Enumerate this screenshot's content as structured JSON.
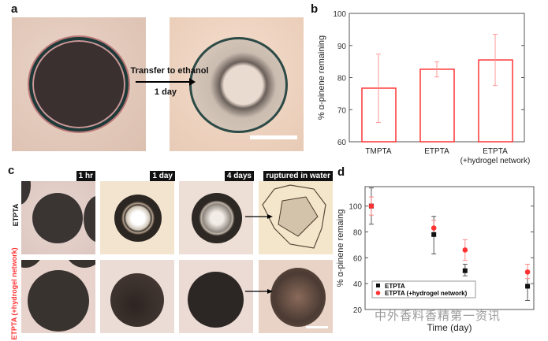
{
  "panels": {
    "a": {
      "label": "a",
      "arrow_text_top": "Transfer to ethanol",
      "arrow_text_bottom": "1 day"
    },
    "b": {
      "label": "b"
    },
    "c": {
      "label": "c",
      "columns": [
        "1 hr",
        "1 day",
        "4 days",
        "ruptured in water"
      ],
      "rows": [
        "ETPTA",
        "ETPTA (+hydrogel network)"
      ],
      "row_colors": [
        "#111111",
        "#ff3333"
      ]
    },
    "d": {
      "label": "d"
    }
  },
  "watermark": "中外香料香精第一资讯",
  "chart_data": [
    {
      "type": "bar",
      "panel": "b",
      "categories": [
        "TMPTA",
        "ETPTA",
        "ETPTA\n(+hydrogel network)"
      ],
      "category_lines": [
        [
          "TMPTA"
        ],
        [
          "ETPTA"
        ],
        [
          "ETPTA",
          "(+hydrogel network)"
        ]
      ],
      "values": [
        76.7,
        82.6,
        85.5
      ],
      "error_low": [
        66.0,
        80.2,
        77.5
      ],
      "error_high": [
        87.3,
        84.9,
        93.5
      ],
      "ylabel": "% α-pinene remaining",
      "ylim": [
        60,
        100
      ],
      "yticks": [
        60,
        70,
        80,
        90,
        100
      ],
      "bar_color": "#ff3333",
      "grid": false
    },
    {
      "type": "scatter",
      "panel": "d",
      "xlabel": "Time (day)",
      "ylabel": "% α-pinene remaing",
      "ylim": [
        20,
        115
      ],
      "xlim": [
        -0.2,
        5.2
      ],
      "yticks": [
        20,
        40,
        60,
        80,
        100
      ],
      "legend_position": "bottom-left",
      "grid": false,
      "series": [
        {
          "name": "ETPTA",
          "marker": "square",
          "color": "#111111",
          "x": [
            0,
            2,
            3,
            5
          ],
          "y": [
            100,
            78,
            50,
            38
          ],
          "error_low": [
            86,
            63,
            46,
            27
          ],
          "error_high": [
            114,
            92,
            55,
            49
          ]
        },
        {
          "name": "ETPTA (+hydrogel network)",
          "marker": "circle",
          "color": "#ff3333",
          "x": [
            0,
            2,
            3,
            5
          ],
          "y": [
            100,
            83,
            66,
            49
          ],
          "error_low": [
            93,
            77,
            58,
            44
          ],
          "error_high": [
            107,
            89,
            74,
            55
          ]
        }
      ]
    }
  ]
}
